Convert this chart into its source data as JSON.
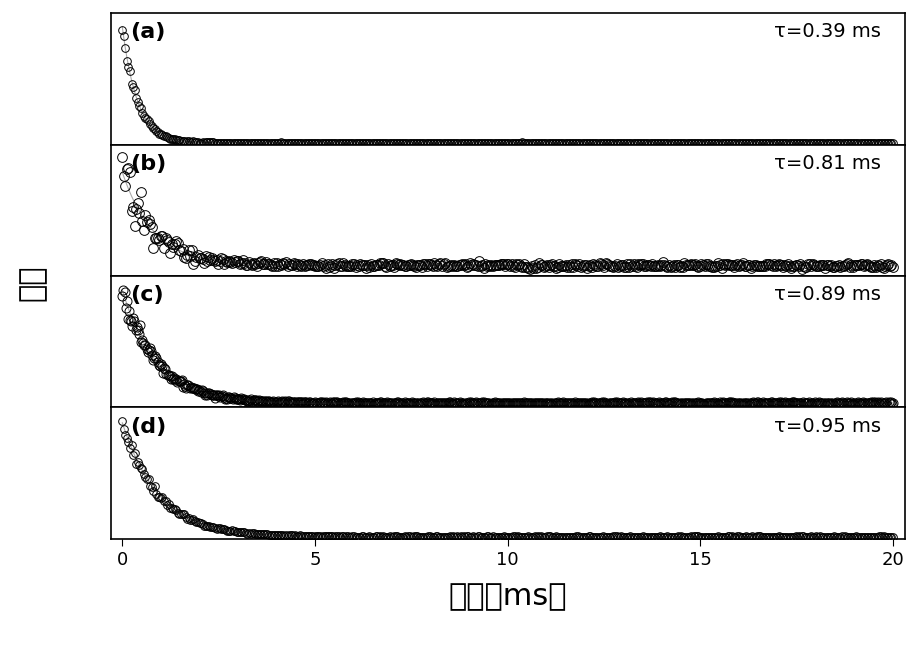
{
  "panels": [
    {
      "label": "(a)",
      "tau": 0.39,
      "tau_text": "τ=0.39 ms",
      "noise_amp": 0.03,
      "n_points": 500,
      "marker_size": 5.5
    },
    {
      "label": "(b)",
      "tau": 0.81,
      "tau_text": "τ=0.81 ms",
      "noise_amp": 0.25,
      "n_points": 500,
      "marker_size": 7.0
    },
    {
      "label": "(c)",
      "tau": 0.89,
      "tau_text": "τ=0.89 ms",
      "noise_amp": 0.08,
      "n_points": 700,
      "marker_size": 6.5
    },
    {
      "label": "(d)",
      "tau": 0.95,
      "tau_text": "τ=0.95 ms",
      "noise_amp": 0.04,
      "n_points": 500,
      "marker_size": 5.5
    }
  ],
  "xmax": 20.0,
  "xlabel": "时间（ms）",
  "ylabel": "强度",
  "marker_color": "none",
  "marker_edge_color": "#000000",
  "fit_line_color": "#aaaaaa",
  "background_color": "#ffffff",
  "label_fontsize": 16,
  "tau_fontsize": 14,
  "axis_label_fontsize": 22,
  "tick_fontsize": 13
}
